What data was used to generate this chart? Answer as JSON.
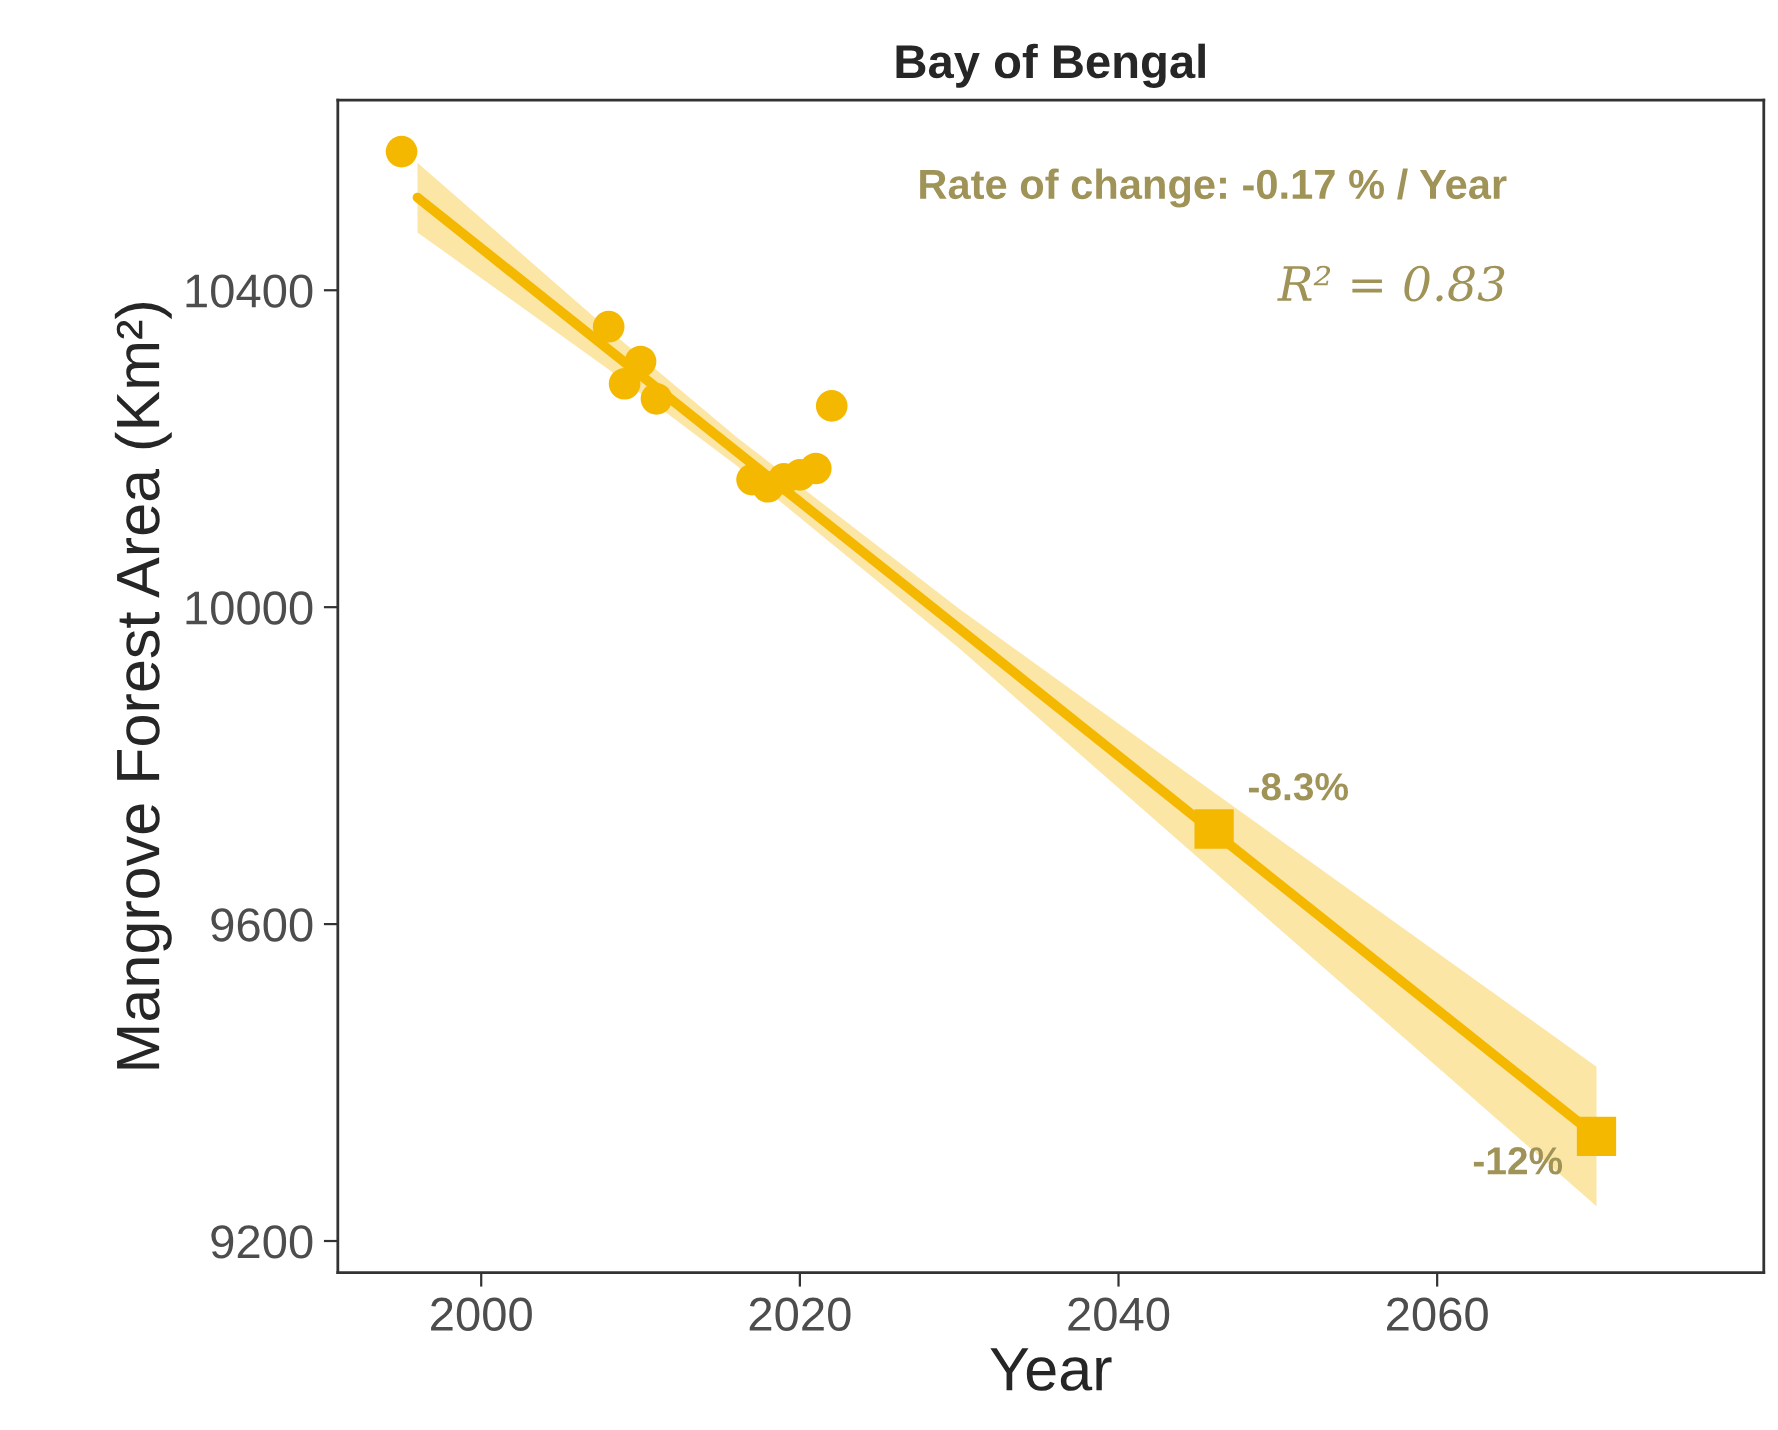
{
  "chart_data": {
    "type": "scatter",
    "title": "Bay of Bengal",
    "xlabel": "Year",
    "ylabel": "Mangrove Forest Area (Km²)",
    "xlim": [
      1991,
      2080.5
    ],
    "ylim": [
      9160,
      10640
    ],
    "xticks": [
      2000,
      2020,
      2040,
      2060
    ],
    "yticks": [
      9200,
      9600,
      10000,
      10400
    ],
    "grid": false,
    "legend": false,
    "series": [
      {
        "type": "line",
        "color": "#f5b800",
        "x": [
          1996,
          2008,
          2016,
          2030,
          2046,
          2070
        ],
        "values": [
          10517,
          10325,
          10197,
          9973,
          9716,
          9332
        ],
        "lower": [
          10473,
          10300,
          10179,
          9948,
          9666,
          9244
        ],
        "upper": [
          10561,
          10350,
          10215,
          9998,
          9766,
          9420
        ],
        "marker": "none",
        "line_style": "solid"
      },
      {
        "color": "#f5b800",
        "x": [
          1995,
          2008,
          2009,
          2010,
          2011,
          2017,
          2018,
          2019,
          2020,
          2021,
          2022
        ],
        "values": [
          10575,
          10354,
          10282,
          10310,
          10263,
          10161,
          10152,
          10162,
          10167,
          10175,
          10254
        ],
        "marker": "circle"
      },
      {
        "color": "#f5b800",
        "x": [
          2046,
          2070
        ],
        "values": [
          9720,
          9332
        ],
        "marker": "square"
      }
    ],
    "annotations": [
      "Rate of change: -0.17 % / Year",
      "R² = 0.83",
      {
        "text": "-8.3%",
        "x": 2046,
        "y": 9720
      },
      {
        "text": "-12%",
        "x": 2070,
        "y": 9332
      }
    ]
  }
}
